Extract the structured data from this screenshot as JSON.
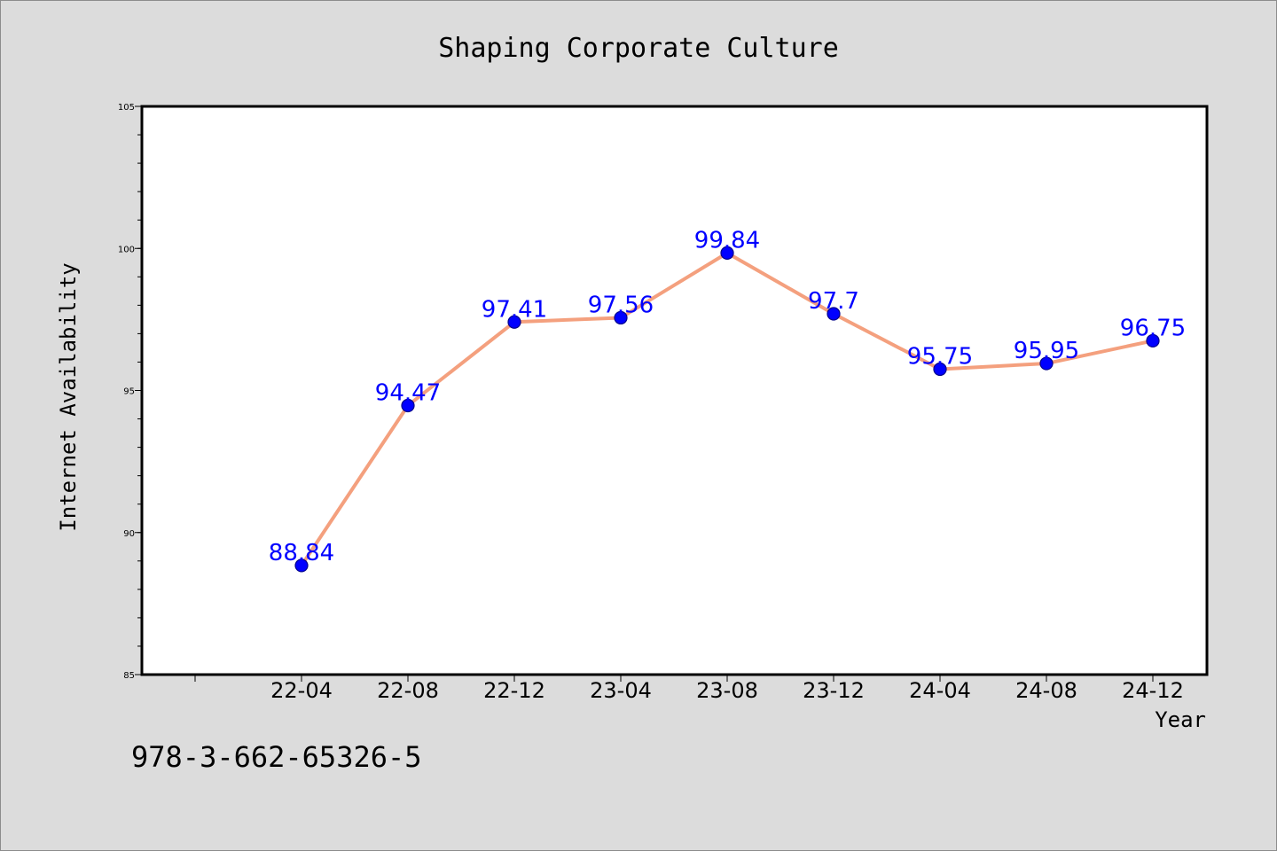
{
  "chart_data": {
    "type": "line",
    "title": "Shaping Corporate Culture",
    "xlabel": "Year",
    "ylabel": "Internet Availability",
    "categories": [
      "22-04",
      "22-08",
      "22-12",
      "23-04",
      "23-08",
      "23-12",
      "24-04",
      "24-08",
      "24-12"
    ],
    "series": [
      {
        "values": [
          88.84,
          94.47,
          97.41,
          97.56,
          99.84,
          97.7,
          95.75,
          95.95,
          96.75
        ]
      }
    ],
    "data_labels": [
      "88.84",
      "94.47",
      "97.41",
      "97.56",
      "99.84",
      "97.7",
      "95.75",
      "95.95",
      "96.75"
    ],
    "ylim": [
      85,
      105
    ],
    "yticks": [
      85,
      90,
      95,
      100,
      105
    ],
    "grid": false,
    "legend": "none",
    "colors": {
      "line": "#f4a07e",
      "marker": "#0000ff",
      "marker_edge": "#00008b",
      "label": "#0000ff"
    }
  },
  "footer_text": "978-3-662-65326-5"
}
